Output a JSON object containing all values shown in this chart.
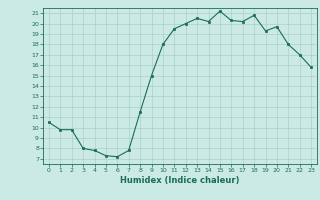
{
  "x": [
    0,
    1,
    2,
    3,
    4,
    5,
    6,
    7,
    8,
    9,
    10,
    11,
    12,
    13,
    14,
    15,
    16,
    17,
    18,
    19,
    20,
    21,
    22,
    23
  ],
  "y": [
    10.5,
    9.8,
    9.8,
    8.0,
    7.8,
    7.3,
    7.2,
    7.8,
    11.5,
    15.0,
    18.0,
    19.5,
    20.0,
    20.5,
    20.2,
    21.2,
    20.3,
    20.2,
    20.8,
    19.3,
    19.7,
    18.0,
    17.0,
    15.8
  ],
  "xlabel": "Humidex (Indice chaleur)",
  "xlim": [
    -0.5,
    23.5
  ],
  "ylim": [
    6.5,
    21.5
  ],
  "yticks": [
    7,
    8,
    9,
    10,
    11,
    12,
    13,
    14,
    15,
    16,
    17,
    18,
    19,
    20,
    21
  ],
  "xticks": [
    0,
    1,
    2,
    3,
    4,
    5,
    6,
    7,
    8,
    9,
    10,
    11,
    12,
    13,
    14,
    15,
    16,
    17,
    18,
    19,
    20,
    21,
    22,
    23
  ],
  "line_color": "#1a6b5a",
  "marker_color": "#1a6b5a",
  "bg_color": "#cceae4",
  "grid_color": "#aacfc8",
  "label_color": "#1a6b5a",
  "tick_color": "#1a6b5a",
  "axis_color": "#1a6b5a"
}
